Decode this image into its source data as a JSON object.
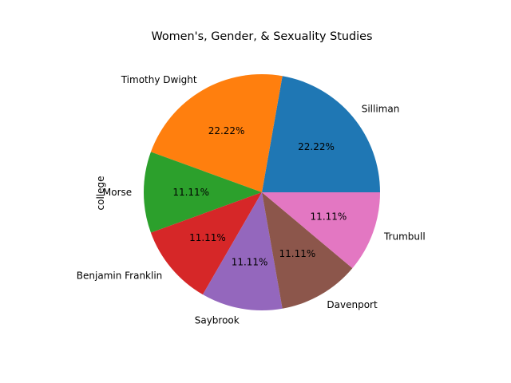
{
  "chart_data": {
    "type": "pie",
    "title": "Women's, Gender, & Sexuality Studies",
    "ylabel": "college",
    "categories": [
      "Silliman",
      "Timothy Dwight",
      "Morse",
      "Benjamin Franklin",
      "Saybrook",
      "Davenport",
      "Trumbull"
    ],
    "values": [
      22.22,
      22.22,
      11.11,
      11.11,
      11.11,
      11.11,
      11.11
    ],
    "percent_labels": [
      "22.22%",
      "22.22%",
      "11.11%",
      "11.11%",
      "11.11%",
      "11.11%",
      "11.11%"
    ],
    "colors": [
      "#1f77b4",
      "#ff7f0e",
      "#2ca02c",
      "#d62728",
      "#9467bd",
      "#8c564b",
      "#e377c2"
    ],
    "start_angle_deg": 0,
    "direction": "counterclockwise",
    "legend": "none"
  }
}
